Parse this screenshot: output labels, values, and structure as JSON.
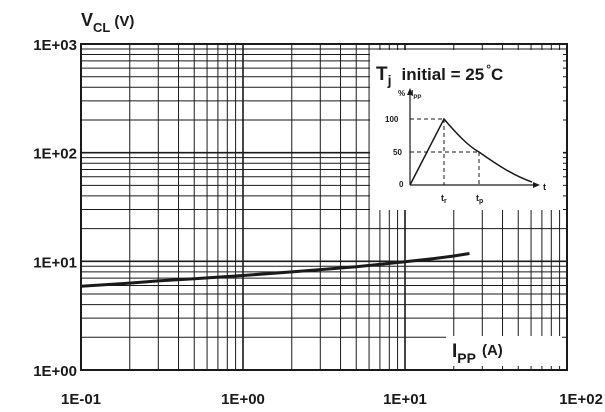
{
  "chart_data": {
    "type": "line",
    "xscale": "log",
    "yscale": "log",
    "xlim": [
      0.1,
      100
    ],
    "ylim": [
      1,
      1000
    ],
    "grid": true,
    "ylabel": {
      "main": "V",
      "sub": "CL",
      "unit": "(V)"
    },
    "xlabel": {
      "main": "I",
      "sub": "PP",
      "unit": "(A)"
    },
    "x_ticks": [
      0.1,
      1,
      10,
      100
    ],
    "y_ticks": [
      1,
      10,
      100,
      1000
    ],
    "x_tick_labels": [
      "1E-01",
      "1E+00",
      "1E+01",
      "1E+02"
    ],
    "y_tick_labels": [
      "1E+00",
      "1E+01",
      "1E+02",
      "1E+03"
    ],
    "series": [
      {
        "x": [
          0.1,
          0.2,
          0.3,
          0.5,
          1,
          2,
          3,
          5,
          10,
          15,
          20,
          25
        ],
        "y": [
          5.9,
          6.3,
          6.6,
          6.9,
          7.4,
          8.0,
          8.4,
          8.9,
          9.9,
          10.6,
          11.2,
          11.8
        ]
      }
    ],
    "annotation": {
      "tj_main": "T",
      "tj_sub": "j",
      "tj_text": "initial = 25",
      "tj_degree": "°",
      "tj_unit": "C"
    },
    "inset": {
      "y_label_pct": "%",
      "y_label_i": "I",
      "y_label_sub": "PP",
      "tick_100": "100",
      "tick_50": "50",
      "tick_0": "0",
      "tr_main": "t",
      "tr_sub": "r",
      "tp_main": "t",
      "tp_sub": "p",
      "t_axis": "t"
    }
  }
}
